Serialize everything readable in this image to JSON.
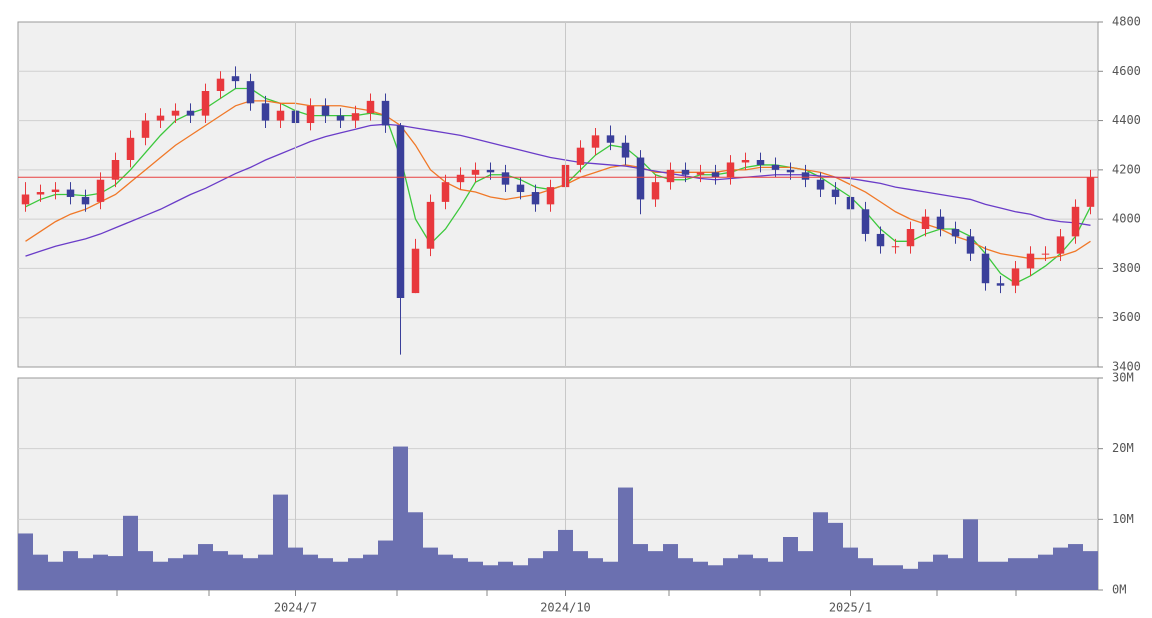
{
  "chart_data": [
    {
      "type": "candlestick",
      "open": [
        4060,
        4100,
        4110,
        4120,
        4090,
        4070,
        4160,
        4240,
        4330,
        4400,
        4420,
        4440,
        4420,
        4520,
        4580,
        4560,
        4470,
        4400,
        4440,
        4390,
        4460,
        4420,
        4400,
        4430,
        4480,
        4380,
        3700,
        3880,
        4070,
        4150,
        4180,
        4200,
        4190,
        4140,
        4110,
        4060,
        4130,
        4220,
        4290,
        4340,
        4310,
        4250,
        4080,
        4150,
        4200,
        4180,
        4190,
        4170,
        4230,
        4240,
        4220,
        4200,
        4190,
        4160,
        4120,
        4090,
        4040,
        3940,
        3890,
        3890,
        3960,
        4010,
        3960,
        3930,
        3860,
        3740,
        3730,
        3800,
        3860,
        3860,
        3930,
        4050
      ],
      "high": [
        4150,
        4140,
        4150,
        4150,
        4120,
        4190,
        4270,
        4360,
        4430,
        4450,
        4470,
        4470,
        4550,
        4600,
        4620,
        4590,
        4500,
        4470,
        4470,
        4490,
        4490,
        4450,
        4460,
        4510,
        4510,
        4390,
        3920,
        4100,
        4180,
        4210,
        4230,
        4230,
        4220,
        4170,
        4140,
        4160,
        4250,
        4320,
        4370,
        4380,
        4340,
        4280,
        4180,
        4230,
        4230,
        4220,
        4220,
        4260,
        4270,
        4270,
        4250,
        4230,
        4220,
        4190,
        4150,
        4120,
        4070,
        3970,
        3920,
        3990,
        4040,
        4040,
        3990,
        3960,
        3890,
        3770,
        3830,
        3890,
        3890,
        3960,
        4080,
        4200
      ],
      "low": [
        4030,
        4070,
        4080,
        4060,
        4030,
        4040,
        4130,
        4210,
        4300,
        4370,
        4390,
        4390,
        4390,
        4490,
        4530,
        4440,
        4370,
        4370,
        4360,
        4360,
        4390,
        4370,
        4370,
        4400,
        4350,
        3450,
        3700,
        3850,
        4040,
        4120,
        4150,
        4160,
        4110,
        4080,
        4030,
        4030,
        4100,
        4190,
        4260,
        4280,
        4220,
        4020,
        4050,
        4120,
        4150,
        4150,
        4140,
        4140,
        4200,
        4190,
        4170,
        4160,
        4130,
        4090,
        4060,
        4010,
        3910,
        3860,
        3860,
        3860,
        3930,
        3930,
        3900,
        3830,
        3710,
        3700,
        3700,
        3770,
        3830,
        3830,
        3900,
        4020
      ],
      "close": [
        4100,
        4110,
        4120,
        4090,
        4060,
        4160,
        4240,
        4330,
        4400,
        4420,
        4440,
        4420,
        4520,
        4570,
        4560,
        4470,
        4400,
        4440,
        4390,
        4460,
        4420,
        4400,
        4430,
        4480,
        4380,
        3680,
        3880,
        4070,
        4150,
        4180,
        4200,
        4190,
        4140,
        4110,
        4060,
        4130,
        4220,
        4290,
        4340,
        4310,
        4250,
        4080,
        4150,
        4200,
        4180,
        4190,
        4170,
        4230,
        4240,
        4220,
        4200,
        4190,
        4160,
        4120,
        4090,
        4040,
        3940,
        3890,
        3890,
        3960,
        4010,
        3960,
        3930,
        3860,
        3740,
        3730,
        3800,
        3860,
        3860,
        3930,
        4050,
        4170
      ],
      "up_color": "#e8383d",
      "down_color": "#3a3f9a",
      "moving_averages": [
        {
          "color": "#3cc83c",
          "values": [
            4050,
            4080,
            4100,
            4100,
            4095,
            4105,
            4140,
            4200,
            4270,
            4340,
            4400,
            4430,
            4450,
            4490,
            4530,
            4530,
            4490,
            4470,
            4440,
            4420,
            4420,
            4420,
            4420,
            4430,
            4420,
            4250,
            4000,
            3900,
            3960,
            4050,
            4150,
            4180,
            4180,
            4160,
            4130,
            4120,
            4140,
            4200,
            4260,
            4300,
            4290,
            4240,
            4180,
            4160,
            4160,
            4180,
            4180,
            4190,
            4210,
            4220,
            4220,
            4210,
            4200,
            4170,
            4130,
            4090,
            4030,
            3960,
            3910,
            3910,
            3940,
            3960,
            3960,
            3930,
            3860,
            3780,
            3740,
            3770,
            3810,
            3860,
            3930,
            4050
          ]
        },
        {
          "color": "#f07828",
          "values": [
            3910,
            3950,
            3990,
            4020,
            4040,
            4070,
            4100,
            4150,
            4200,
            4250,
            4300,
            4340,
            4380,
            4420,
            4460,
            4480,
            4480,
            4470,
            4470,
            4460,
            4460,
            4460,
            4450,
            4440,
            4420,
            4380,
            4300,
            4200,
            4150,
            4120,
            4110,
            4090,
            4080,
            4090,
            4100,
            4120,
            4140,
            4170,
            4190,
            4210,
            4220,
            4210,
            4190,
            4190,
            4190,
            4190,
            4190,
            4200,
            4200,
            4210,
            4210,
            4210,
            4200,
            4190,
            4170,
            4140,
            4110,
            4070,
            4030,
            4000,
            3980,
            3960,
            3930,
            3910,
            3880,
            3860,
            3850,
            3840,
            3840,
            3850,
            3870,
            3910
          ]
        },
        {
          "color": "#6a3cc8",
          "values": [
            3850,
            3870,
            3890,
            3905,
            3920,
            3940,
            3965,
            3990,
            4015,
            4040,
            4070,
            4100,
            4125,
            4155,
            4185,
            4210,
            4240,
            4265,
            4290,
            4315,
            4335,
            4350,
            4365,
            4380,
            4385,
            4380,
            4370,
            4360,
            4350,
            4340,
            4325,
            4310,
            4295,
            4280,
            4265,
            4250,
            4240,
            4230,
            4225,
            4220,
            4215,
            4205,
            4195,
            4185,
            4175,
            4165,
            4160,
            4165,
            4170,
            4175,
            4180,
            4180,
            4180,
            4175,
            4170,
            4165,
            4155,
            4145,
            4130,
            4120,
            4110,
            4100,
            4090,
            4080,
            4060,
            4045,
            4030,
            4020,
            4000,
            3990,
            3985,
            3975
          ]
        }
      ],
      "hline": 4170,
      "hline_color": "#e84040",
      "ylim": [
        3400,
        4800
      ],
      "yticks": [
        3400,
        3600,
        3800,
        4000,
        4200,
        4400,
        4600,
        4800
      ],
      "grid": true
    },
    {
      "type": "bar",
      "color": "#6b70b0",
      "categories": [
        null,
        null,
        null,
        null,
        null,
        null,
        null,
        null,
        null,
        null,
        null,
        null,
        null,
        null,
        null,
        null,
        null,
        null,
        "2024/7",
        null,
        null,
        null,
        null,
        null,
        null,
        null,
        null,
        null,
        null,
        null,
        null,
        null,
        null,
        null,
        null,
        null,
        "2024/10",
        null,
        null,
        null,
        null,
        null,
        null,
        null,
        null,
        null,
        null,
        null,
        null,
        null,
        null,
        null,
        null,
        null,
        null,
        "2025/1",
        null,
        null,
        null,
        null,
        null,
        null,
        null,
        null,
        null,
        null,
        null,
        null,
        null,
        null,
        null,
        null
      ],
      "values": [
        8000000,
        5000000,
        4000000,
        5500000,
        4500000,
        5000000,
        4800000,
        10500000,
        5500000,
        4000000,
        4500000,
        5000000,
        6500000,
        5500000,
        5000000,
        4500000,
        5000000,
        13500000,
        6000000,
        5000000,
        4500000,
        4000000,
        4500000,
        5000000,
        7000000,
        20300000,
        11000000,
        6000000,
        5000000,
        4500000,
        4000000,
        3500000,
        4000000,
        3500000,
        4500000,
        5500000,
        8500000,
        5500000,
        4500000,
        4000000,
        14500000,
        6500000,
        5500000,
        6500000,
        4500000,
        4000000,
        3500000,
        4500000,
        5000000,
        4500000,
        4000000,
        7500000,
        5500000,
        11000000,
        9500000,
        6000000,
        4500000,
        3500000,
        3500000,
        3000000,
        4000000,
        5000000,
        4500000,
        10000000,
        4000000,
        4000000,
        4500000,
        4500000,
        5000000,
        6000000,
        6500000,
        5500000
      ],
      "ylim": [
        0,
        30000000
      ],
      "yticks": [
        {
          "value": 0,
          "label": "0M"
        },
        {
          "value": 10000000,
          "label": "10M"
        },
        {
          "value": 20000000,
          "label": "20M"
        },
        {
          "value": 30000000,
          "label": "30M"
        }
      ],
      "grid": true
    }
  ]
}
